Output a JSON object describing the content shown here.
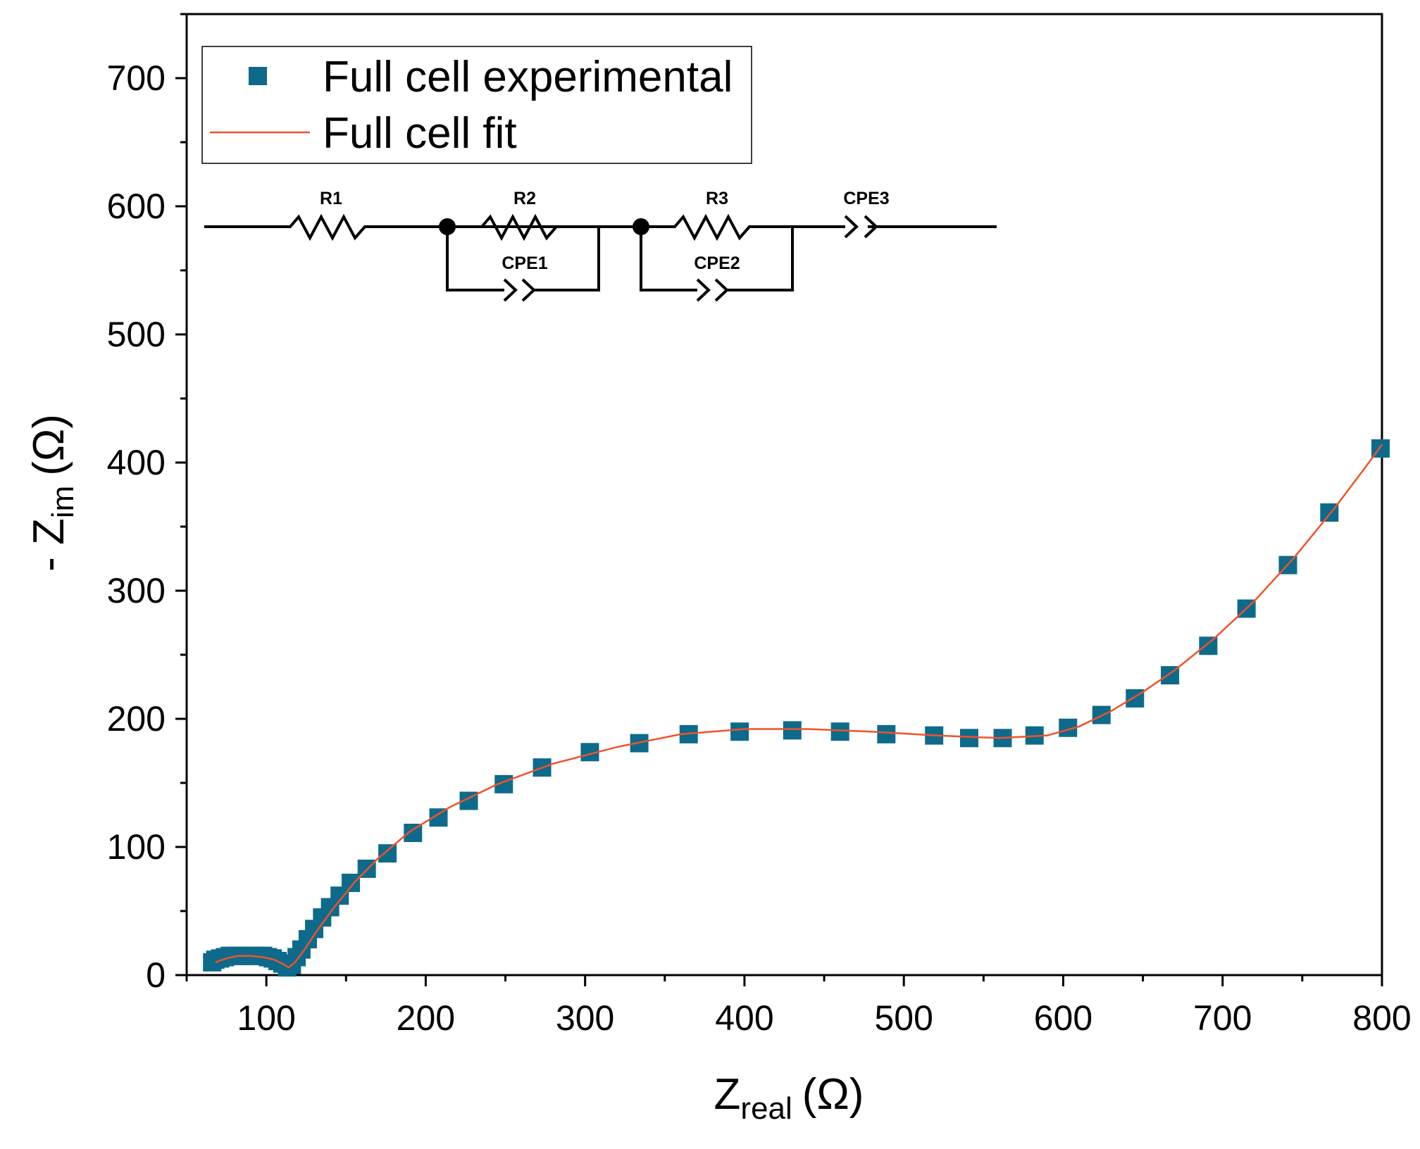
{
  "chart_data": {
    "type": "scatter",
    "title": "",
    "xlabel": {
      "main": "Z",
      "sub": "real",
      "unit": "(Ω)"
    },
    "ylabel": {
      "prefix": "- Z",
      "sub": "im",
      "unit": "(Ω)"
    },
    "xlim": [
      50,
      800
    ],
    "ylim": [
      0,
      750
    ],
    "x_ticks": [
      100,
      200,
      300,
      400,
      500,
      600,
      700,
      800
    ],
    "y_ticks": [
      0,
      100,
      200,
      300,
      400,
      500,
      600,
      700
    ],
    "legend_position": "top-left",
    "series": [
      {
        "name": "Full cell experimental",
        "kind": "markers",
        "marker": "square",
        "color": "#0e6a8a",
        "x": [
          66,
          68,
          71,
          74,
          77,
          80,
          83,
          86,
          89,
          92,
          95,
          98,
          101,
          104,
          107,
          110,
          113,
          116,
          119,
          122,
          126,
          130,
          135,
          140,
          146,
          153,
          163,
          176,
          192,
          208,
          227,
          249,
          273,
          303,
          334,
          365,
          397,
          430,
          460,
          489,
          519,
          541,
          562,
          582,
          603,
          624,
          645,
          667,
          691,
          715,
          741,
          767,
          800
        ],
        "y": [
          10,
          12,
          13,
          14,
          15,
          15,
          15,
          15,
          15,
          15,
          15,
          15,
          14,
          13,
          11,
          9,
          6,
          8,
          14,
          20,
          28,
          36,
          45,
          53,
          62,
          72,
          83,
          95,
          111,
          123,
          136,
          149,
          162,
          174,
          181,
          188,
          190,
          191,
          190,
          188,
          187,
          185,
          185,
          187,
          193,
          203,
          216,
          234,
          257,
          286,
          320,
          361,
          411
        ]
      },
      {
        "name": "Full cell fit",
        "kind": "line",
        "color": "#f0522a",
        "x": [
          68,
          75,
          82,
          90,
          98,
          105,
          110,
          114,
          118,
          124,
          132,
          142,
          155,
          170,
          190,
          215,
          245,
          280,
          320,
          360,
          400,
          440,
          480,
          520,
          560,
          590,
          610,
          630,
          650,
          670,
          695,
          720,
          745,
          770,
          790,
          800
        ],
        "y": [
          10,
          13,
          15,
          15,
          14,
          12,
          9,
          6,
          10,
          20,
          35,
          52,
          72,
          91,
          112,
          131,
          149,
          165,
          178,
          188,
          192,
          192,
          190,
          187,
          185,
          187,
          194,
          206,
          221,
          238,
          263,
          292,
          326,
          364,
          397,
          414
        ]
      }
    ]
  },
  "circuit": {
    "labels": {
      "r1": "R1",
      "r2": "R2",
      "r3": "R3",
      "cpe1": "CPE1",
      "cpe2": "CPE2",
      "cpe3": "CPE3"
    }
  }
}
